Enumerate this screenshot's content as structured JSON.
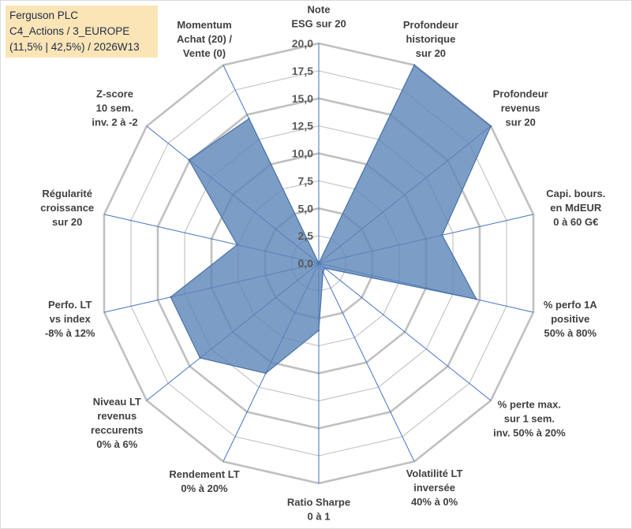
{
  "info": {
    "line1": "Ferguson PLC",
    "line2": "C4_Actions / 3_EUROPE",
    "line3": "(11,5% | 42,5%) / 2026W13"
  },
  "chart_data": {
    "type": "radar",
    "title": "",
    "rmin": 0,
    "rmax": 20,
    "grid_step": 2.5,
    "tick_labels": [
      "0,0",
      "2,5",
      "5,0",
      "7,5",
      "10,0",
      "12,5",
      "15,0",
      "17,5",
      "20,0"
    ],
    "axes": [
      {
        "name": "Note ESG sur 20",
        "lines": [
          "Note",
          "ESG sur 20"
        ]
      },
      {
        "name": "Profondeur historique sur 20",
        "lines": [
          "Profondeur",
          "historique",
          "sur 20"
        ]
      },
      {
        "name": "Profondeur revenus sur 20",
        "lines": [
          "Profondeur",
          "revenus",
          "sur 20"
        ]
      },
      {
        "name": "Capi. bours. en MdEUR 0 à 60 G€",
        "lines": [
          "Capi. bours.",
          "en MdEUR",
          "0 à 60 G€"
        ]
      },
      {
        "name": "% perfo 1A positive 50% à 80%",
        "lines": [
          "% perfo 1A",
          "positive",
          "50% à 80%"
        ]
      },
      {
        "name": "% perte max. sur 1 sem. inv. 50% à 20%",
        "lines": [
          "% perte max.",
          "sur 1 sem.",
          "inv. 50% à 20%"
        ]
      },
      {
        "name": "Volatilité LT inversée 40% à 0%",
        "lines": [
          "Volatilité LT",
          "inversée",
          "40% à 0%"
        ]
      },
      {
        "name": "Ratio Sharpe 0 à 1",
        "lines": [
          "Ratio Sharpe",
          "0 à 1"
        ]
      },
      {
        "name": "Rendement LT 0% à 20%",
        "lines": [
          "Rendement LT",
          "0% à 20%"
        ]
      },
      {
        "name": "Niveau LT revenus reccurents 0% à 6%",
        "lines": [
          "Niveau LT",
          "revenus",
          "reccurents",
          "0% à 6%"
        ]
      },
      {
        "name": "Perfo. LT vs index -8% à 12%",
        "lines": [
          "Perfo. LT",
          "vs index",
          "-8% à 12%"
        ]
      },
      {
        "name": "Régularité croissance sur 20",
        "lines": [
          "Régularité",
          "croissance",
          "sur 20"
        ]
      },
      {
        "name": "Z-score 10 sem. inv. 2 à -2",
        "lines": [
          "Z-score",
          "10 sem.",
          "inv. 2 à -2"
        ]
      },
      {
        "name": "Momentum Achat (20) / Vente (0)",
        "lines": [
          "Momentum",
          "Achat (20) /",
          "Vente (0)"
        ]
      }
    ],
    "series": [
      {
        "name": "Ferguson PLC",
        "values": [
          0,
          20,
          20,
          11.5,
          14.7,
          0.7,
          0.9,
          6.1,
          11.1,
          13.8,
          13.8,
          7.6,
          15.1,
          14.6
        ]
      }
    ],
    "colors": {
      "fill": "#5b84b8",
      "fill_opacity": 0.8,
      "stroke": "#4a73a8",
      "grid": "#c0c0c0",
      "spoke": "#4472c4",
      "info_bg": "#fbe5b6"
    }
  }
}
